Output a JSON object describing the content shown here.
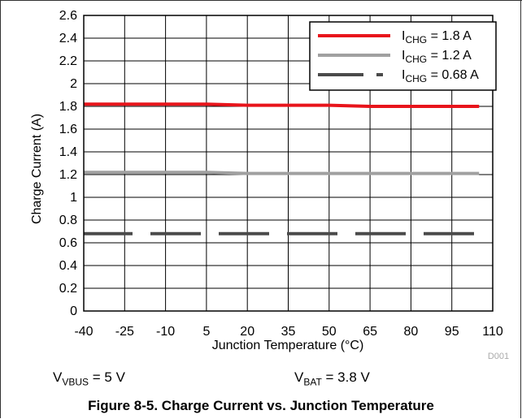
{
  "chart_data": {
    "type": "line",
    "xlabel": "Junction Temperature (°C)",
    "ylabel": "Charge Current (A)",
    "xlim": [
      -40,
      110
    ],
    "ylim": [
      0,
      2.6
    ],
    "x_ticks": [
      "-40",
      "-25",
      "-10",
      "5",
      "20",
      "35",
      "50",
      "65",
      "80",
      "95",
      "110"
    ],
    "y_ticks": [
      "0",
      "0.2",
      "0.4",
      "0.6",
      "0.8",
      "1",
      "1.2",
      "1.4",
      "1.6",
      "1.8",
      "2",
      "2.2",
      "2.4",
      "2.6"
    ],
    "grid": true,
    "legend_position": "top-right",
    "series": [
      {
        "name_main": "I",
        "name_sub": "CHG",
        "name_rest": " = 1.8 A",
        "color": "#e8141b",
        "style": "solid",
        "x": [
          -40,
          -25,
          -10,
          5,
          20,
          35,
          50,
          65,
          80,
          95,
          105
        ],
        "y": [
          1.82,
          1.82,
          1.82,
          1.82,
          1.81,
          1.81,
          1.81,
          1.8,
          1.8,
          1.8,
          1.8
        ]
      },
      {
        "name_main": "I",
        "name_sub": "CHG",
        "name_rest": " = 1.2 A",
        "color": "#a0a0a0",
        "style": "solid",
        "x": [
          -40,
          -25,
          -10,
          5,
          20,
          35,
          50,
          65,
          80,
          95,
          105
        ],
        "y": [
          1.22,
          1.22,
          1.22,
          1.22,
          1.21,
          1.21,
          1.21,
          1.21,
          1.21,
          1.21,
          1.21
        ]
      },
      {
        "name_main": "I",
        "name_sub": "CHG",
        "name_rest": " = 0.68 A",
        "color": "#4a4a4a",
        "style": "dashed",
        "x": [
          -40,
          -25,
          -10,
          5,
          20,
          35,
          50,
          65,
          80,
          95,
          105
        ],
        "y": [
          0.68,
          0.68,
          0.68,
          0.68,
          0.68,
          0.68,
          0.68,
          0.68,
          0.68,
          0.68,
          0.68
        ]
      }
    ],
    "watermark": "D001"
  },
  "conditions": [
    {
      "main": "V",
      "sub": "VBUS",
      "rest": " = 5 V"
    },
    {
      "main": "V",
      "sub": "BAT",
      "rest": " = 3.8 V"
    }
  ],
  "caption": "Figure 8-5. Charge Current vs. Junction Temperature"
}
